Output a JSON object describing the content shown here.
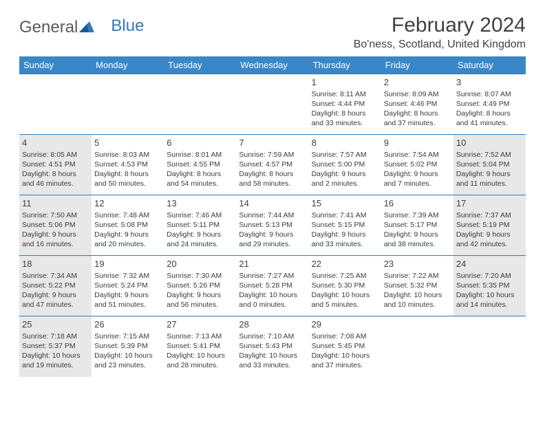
{
  "brand": {
    "word1": "General",
    "word2": "Blue"
  },
  "title": "February 2024",
  "location": "Bo'ness, Scotland, United Kingdom",
  "colors": {
    "header_bg": "#3a87c8",
    "header_text": "#ffffff",
    "border": "#2f79b9",
    "shaded_bg": "#e8e8e8",
    "text": "#3b3b3b"
  },
  "day_headers": [
    "Sunday",
    "Monday",
    "Tuesday",
    "Wednesday",
    "Thursday",
    "Friday",
    "Saturday"
  ],
  "weeks": [
    [
      {
        "day": "",
        "sunrise": "",
        "sunset": "",
        "daylight1": "",
        "daylight2": "",
        "shaded": false,
        "empty": true
      },
      {
        "day": "",
        "sunrise": "",
        "sunset": "",
        "daylight1": "",
        "daylight2": "",
        "shaded": false,
        "empty": true
      },
      {
        "day": "",
        "sunrise": "",
        "sunset": "",
        "daylight1": "",
        "daylight2": "",
        "shaded": false,
        "empty": true
      },
      {
        "day": "",
        "sunrise": "",
        "sunset": "",
        "daylight1": "",
        "daylight2": "",
        "shaded": false,
        "empty": true
      },
      {
        "day": "1",
        "sunrise": "Sunrise: 8:11 AM",
        "sunset": "Sunset: 4:44 PM",
        "daylight1": "Daylight: 8 hours",
        "daylight2": "and 33 minutes.",
        "shaded": false
      },
      {
        "day": "2",
        "sunrise": "Sunrise: 8:09 AM",
        "sunset": "Sunset: 4:46 PM",
        "daylight1": "Daylight: 8 hours",
        "daylight2": "and 37 minutes.",
        "shaded": false
      },
      {
        "day": "3",
        "sunrise": "Sunrise: 8:07 AM",
        "sunset": "Sunset: 4:49 PM",
        "daylight1": "Daylight: 8 hours",
        "daylight2": "and 41 minutes.",
        "shaded": false
      }
    ],
    [
      {
        "day": "4",
        "sunrise": "Sunrise: 8:05 AM",
        "sunset": "Sunset: 4:51 PM",
        "daylight1": "Daylight: 8 hours",
        "daylight2": "and 46 minutes.",
        "shaded": true
      },
      {
        "day": "5",
        "sunrise": "Sunrise: 8:03 AM",
        "sunset": "Sunset: 4:53 PM",
        "daylight1": "Daylight: 8 hours",
        "daylight2": "and 50 minutes.",
        "shaded": false
      },
      {
        "day": "6",
        "sunrise": "Sunrise: 8:01 AM",
        "sunset": "Sunset: 4:55 PM",
        "daylight1": "Daylight: 8 hours",
        "daylight2": "and 54 minutes.",
        "shaded": false
      },
      {
        "day": "7",
        "sunrise": "Sunrise: 7:59 AM",
        "sunset": "Sunset: 4:57 PM",
        "daylight1": "Daylight: 8 hours",
        "daylight2": "and 58 minutes.",
        "shaded": false
      },
      {
        "day": "8",
        "sunrise": "Sunrise: 7:57 AM",
        "sunset": "Sunset: 5:00 PM",
        "daylight1": "Daylight: 9 hours",
        "daylight2": "and 2 minutes.",
        "shaded": false
      },
      {
        "day": "9",
        "sunrise": "Sunrise: 7:54 AM",
        "sunset": "Sunset: 5:02 PM",
        "daylight1": "Daylight: 9 hours",
        "daylight2": "and 7 minutes.",
        "shaded": false
      },
      {
        "day": "10",
        "sunrise": "Sunrise: 7:52 AM",
        "sunset": "Sunset: 5:04 PM",
        "daylight1": "Daylight: 9 hours",
        "daylight2": "and 11 minutes.",
        "shaded": true
      }
    ],
    [
      {
        "day": "11",
        "sunrise": "Sunrise: 7:50 AM",
        "sunset": "Sunset: 5:06 PM",
        "daylight1": "Daylight: 9 hours",
        "daylight2": "and 16 minutes.",
        "shaded": true
      },
      {
        "day": "12",
        "sunrise": "Sunrise: 7:48 AM",
        "sunset": "Sunset: 5:08 PM",
        "daylight1": "Daylight: 9 hours",
        "daylight2": "and 20 minutes.",
        "shaded": false
      },
      {
        "day": "13",
        "sunrise": "Sunrise: 7:46 AM",
        "sunset": "Sunset: 5:11 PM",
        "daylight1": "Daylight: 9 hours",
        "daylight2": "and 24 minutes.",
        "shaded": false
      },
      {
        "day": "14",
        "sunrise": "Sunrise: 7:44 AM",
        "sunset": "Sunset: 5:13 PM",
        "daylight1": "Daylight: 9 hours",
        "daylight2": "and 29 minutes.",
        "shaded": false
      },
      {
        "day": "15",
        "sunrise": "Sunrise: 7:41 AM",
        "sunset": "Sunset: 5:15 PM",
        "daylight1": "Daylight: 9 hours",
        "daylight2": "and 33 minutes.",
        "shaded": false
      },
      {
        "day": "16",
        "sunrise": "Sunrise: 7:39 AM",
        "sunset": "Sunset: 5:17 PM",
        "daylight1": "Daylight: 9 hours",
        "daylight2": "and 38 minutes.",
        "shaded": false
      },
      {
        "day": "17",
        "sunrise": "Sunrise: 7:37 AM",
        "sunset": "Sunset: 5:19 PM",
        "daylight1": "Daylight: 9 hours",
        "daylight2": "and 42 minutes.",
        "shaded": true
      }
    ],
    [
      {
        "day": "18",
        "sunrise": "Sunrise: 7:34 AM",
        "sunset": "Sunset: 5:22 PM",
        "daylight1": "Daylight: 9 hours",
        "daylight2": "and 47 minutes.",
        "shaded": true
      },
      {
        "day": "19",
        "sunrise": "Sunrise: 7:32 AM",
        "sunset": "Sunset: 5:24 PM",
        "daylight1": "Daylight: 9 hours",
        "daylight2": "and 51 minutes.",
        "shaded": false
      },
      {
        "day": "20",
        "sunrise": "Sunrise: 7:30 AM",
        "sunset": "Sunset: 5:26 PM",
        "daylight1": "Daylight: 9 hours",
        "daylight2": "and 56 minutes.",
        "shaded": false
      },
      {
        "day": "21",
        "sunrise": "Sunrise: 7:27 AM",
        "sunset": "Sunset: 5:28 PM",
        "daylight1": "Daylight: 10 hours",
        "daylight2": "and 0 minutes.",
        "shaded": false
      },
      {
        "day": "22",
        "sunrise": "Sunrise: 7:25 AM",
        "sunset": "Sunset: 5:30 PM",
        "daylight1": "Daylight: 10 hours",
        "daylight2": "and 5 minutes.",
        "shaded": false
      },
      {
        "day": "23",
        "sunrise": "Sunrise: 7:22 AM",
        "sunset": "Sunset: 5:32 PM",
        "daylight1": "Daylight: 10 hours",
        "daylight2": "and 10 minutes.",
        "shaded": false
      },
      {
        "day": "24",
        "sunrise": "Sunrise: 7:20 AM",
        "sunset": "Sunset: 5:35 PM",
        "daylight1": "Daylight: 10 hours",
        "daylight2": "and 14 minutes.",
        "shaded": true
      }
    ],
    [
      {
        "day": "25",
        "sunrise": "Sunrise: 7:18 AM",
        "sunset": "Sunset: 5:37 PM",
        "daylight1": "Daylight: 10 hours",
        "daylight2": "and 19 minutes.",
        "shaded": true
      },
      {
        "day": "26",
        "sunrise": "Sunrise: 7:15 AM",
        "sunset": "Sunset: 5:39 PM",
        "daylight1": "Daylight: 10 hours",
        "daylight2": "and 23 minutes.",
        "shaded": false
      },
      {
        "day": "27",
        "sunrise": "Sunrise: 7:13 AM",
        "sunset": "Sunset: 5:41 PM",
        "daylight1": "Daylight: 10 hours",
        "daylight2": "and 28 minutes.",
        "shaded": false
      },
      {
        "day": "28",
        "sunrise": "Sunrise: 7:10 AM",
        "sunset": "Sunset: 5:43 PM",
        "daylight1": "Daylight: 10 hours",
        "daylight2": "and 33 minutes.",
        "shaded": false
      },
      {
        "day": "29",
        "sunrise": "Sunrise: 7:08 AM",
        "sunset": "Sunset: 5:45 PM",
        "daylight1": "Daylight: 10 hours",
        "daylight2": "and 37 minutes.",
        "shaded": false
      },
      {
        "day": "",
        "sunrise": "",
        "sunset": "",
        "daylight1": "",
        "daylight2": "",
        "shaded": false,
        "empty": true
      },
      {
        "day": "",
        "sunrise": "",
        "sunset": "",
        "daylight1": "",
        "daylight2": "",
        "shaded": false,
        "empty": true
      }
    ]
  ]
}
